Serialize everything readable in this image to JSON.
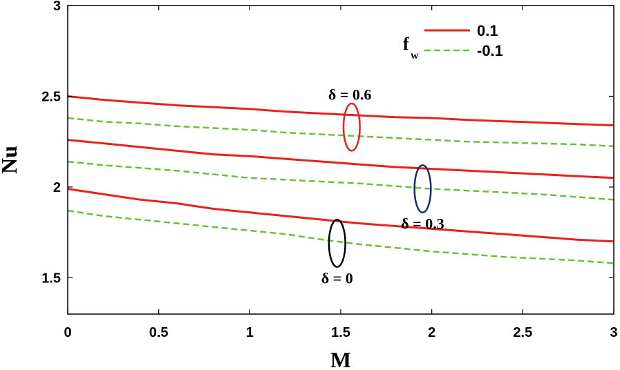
{
  "chart_data": {
    "type": "line",
    "xlabel": "M",
    "ylabel": "Nu",
    "xlim": [
      0,
      3
    ],
    "ylim": [
      1.3,
      3
    ],
    "xticks": [
      "0",
      "0.5",
      "1",
      "1.5",
      "2",
      "2.5",
      "3"
    ],
    "yticks": [
      "1.5",
      "2",
      "2.5",
      "3"
    ],
    "ytick_values": [
      1.5,
      2,
      2.5,
      3
    ],
    "xtick_values": [
      0,
      0.5,
      1,
      1.5,
      2,
      2.5,
      3
    ],
    "grid": false,
    "legend_title": "f",
    "legend_title_sub": "w",
    "legend_position": "top-right",
    "legend": [
      {
        "label": "0.1",
        "color": "#e8211b",
        "style": "solid"
      },
      {
        "label": "-0.1",
        "color": "#6abf3a",
        "style": "dashed"
      }
    ],
    "x": [
      0,
      0.2,
      0.4,
      0.6,
      0.8,
      1.0,
      1.2,
      1.4,
      1.6,
      1.8,
      2.0,
      2.2,
      2.4,
      2.6,
      2.8,
      3.0
    ],
    "series": [
      {
        "style": "solid",
        "color": "#e8211b",
        "values": [
          2.5,
          2.48,
          2.465,
          2.45,
          2.44,
          2.43,
          2.415,
          2.405,
          2.395,
          2.385,
          2.38,
          2.37,
          2.362,
          2.355,
          2.347,
          2.34
        ]
      },
      {
        "style": "dashed",
        "color": "#6abf3a",
        "values": [
          2.38,
          2.36,
          2.35,
          2.335,
          2.325,
          2.315,
          2.3,
          2.29,
          2.28,
          2.27,
          2.26,
          2.25,
          2.245,
          2.24,
          2.235,
          2.225
        ]
      },
      {
        "style": "solid",
        "color": "#e8211b",
        "values": [
          2.26,
          2.24,
          2.22,
          2.2,
          2.18,
          2.17,
          2.155,
          2.14,
          2.125,
          2.11,
          2.1,
          2.09,
          2.08,
          2.07,
          2.06,
          2.05
        ]
      },
      {
        "style": "dashed",
        "color": "#6abf3a",
        "values": [
          2.14,
          2.12,
          2.105,
          2.09,
          2.07,
          2.05,
          2.04,
          2.03,
          2.02,
          2.005,
          1.99,
          1.98,
          1.97,
          1.96,
          1.945,
          1.93
        ]
      },
      {
        "style": "solid",
        "color": "#e8211b",
        "values": [
          1.99,
          1.96,
          1.93,
          1.91,
          1.88,
          1.86,
          1.84,
          1.82,
          1.8,
          1.785,
          1.77,
          1.755,
          1.74,
          1.725,
          1.71,
          1.7
        ]
      },
      {
        "style": "dashed",
        "color": "#6abf3a",
        "values": [
          1.87,
          1.84,
          1.82,
          1.8,
          1.78,
          1.76,
          1.74,
          1.71,
          1.685,
          1.665,
          1.645,
          1.63,
          1.615,
          1.605,
          1.595,
          1.58
        ]
      }
    ],
    "annotations": [
      {
        "text": "δ = 0.6",
        "x": 1.55,
        "y": 2.48,
        "ellipse": {
          "cx": 1.56,
          "cy": 2.33,
          "rx": 0.045,
          "ry": 0.13
        },
        "color": "#e8211b"
      },
      {
        "text": "δ = 0.3",
        "x": 1.95,
        "y": 1.77,
        "ellipse": {
          "cx": 1.95,
          "cy": 1.99,
          "rx": 0.045,
          "ry": 0.13
        },
        "color": "#1b2a6e"
      },
      {
        "text": "δ = 0",
        "x": 1.48,
        "y": 1.47,
        "ellipse": {
          "cx": 1.48,
          "cy": 1.69,
          "rx": 0.045,
          "ry": 0.13
        },
        "color": "#000000"
      }
    ]
  }
}
